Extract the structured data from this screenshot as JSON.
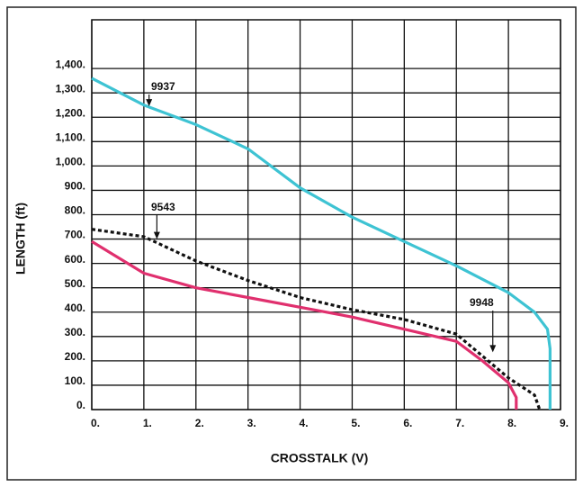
{
  "chart_data": {
    "type": "line",
    "xlabel": "CROSSTALK (V)",
    "ylabel": "LENGTH (ft)",
    "xlim": [
      0,
      9
    ],
    "ylim": [
      0,
      1600
    ],
    "xticks": [
      {
        "value": 0,
        "label": "0."
      },
      {
        "value": 1,
        "label": "1."
      },
      {
        "value": 2,
        "label": "2."
      },
      {
        "value": 3,
        "label": "3."
      },
      {
        "value": 4,
        "label": "4."
      },
      {
        "value": 5,
        "label": "5."
      },
      {
        "value": 6,
        "label": "6."
      },
      {
        "value": 7,
        "label": "7."
      },
      {
        "value": 8,
        "label": "8."
      },
      {
        "value": 9,
        "label": "9."
      }
    ],
    "yticks": [
      {
        "value": 0,
        "label": "0."
      },
      {
        "value": 100,
        "label": "100."
      },
      {
        "value": 200,
        "label": "200."
      },
      {
        "value": 300,
        "label": "300."
      },
      {
        "value": 400,
        "label": "400."
      },
      {
        "value": 500,
        "label": "500."
      },
      {
        "value": 600,
        "label": "600."
      },
      {
        "value": 700,
        "label": "700."
      },
      {
        "value": 800,
        "label": "800."
      },
      {
        "value": 900,
        "label": "900."
      },
      {
        "value": 1000,
        "label": "1,000."
      },
      {
        "value": 1100,
        "label": "1,100."
      },
      {
        "value": 1200,
        "label": "1,200."
      },
      {
        "value": 1300,
        "label": "1,300."
      },
      {
        "value": 1400,
        "label": "1,400."
      }
    ],
    "grid": true,
    "series": [
      {
        "name": "9937",
        "color": "#3ec3d3",
        "style": "solid",
        "x": [
          0,
          1,
          2,
          3,
          4,
          5,
          6,
          7,
          8,
          8.5,
          8.75,
          8.8,
          8.8
        ],
        "values": [
          1360,
          1250,
          1170,
          1070,
          910,
          790,
          690,
          590,
          480,
          400,
          330,
          250,
          0
        ]
      },
      {
        "name": "9543",
        "color": "#111111",
        "style": "dotted",
        "x": [
          0,
          1,
          2,
          3,
          4,
          5,
          6,
          7,
          7.5,
          8,
          8.5,
          8.6
        ],
        "values": [
          740,
          710,
          610,
          530,
          460,
          410,
          370,
          310,
          220,
          130,
          60,
          0
        ]
      },
      {
        "name": "9948",
        "color": "#e0306e",
        "style": "solid",
        "x": [
          0,
          1,
          2,
          3,
          4,
          5,
          6,
          7,
          7.5,
          8,
          8.15,
          8.15
        ],
        "values": [
          690,
          560,
          500,
          460,
          420,
          380,
          330,
          280,
          200,
          110,
          50,
          0
        ]
      }
    ]
  }
}
